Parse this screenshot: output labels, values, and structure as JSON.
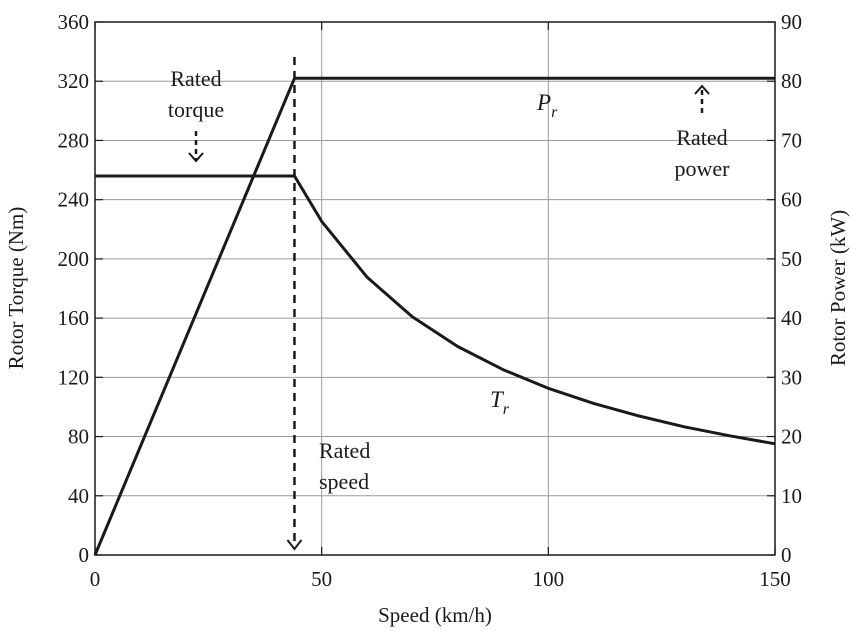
{
  "chart_data": {
    "type": "line",
    "title": "",
    "xlabel": "Speed (km/h)",
    "ylabel_left": "Rotor Torque (Nm)",
    "ylabel_right": "Rotor Power (kW)",
    "xlim": [
      0,
      150
    ],
    "ylim_left": [
      0,
      360
    ],
    "ylim_right": [
      0,
      90
    ],
    "x_ticks": [
      "0",
      "50",
      "100",
      "150"
    ],
    "y_ticks_left": [
      "0",
      "40",
      "80",
      "120",
      "160",
      "200",
      "240",
      "280",
      "320",
      "360"
    ],
    "y_ticks_right": [
      "0",
      "10",
      "20",
      "30",
      "40",
      "50",
      "60",
      "70",
      "80",
      "90"
    ],
    "grid": true,
    "rated_speed": 44,
    "series": [
      {
        "name": "T",
        "subscript": "r",
        "axis": "left",
        "points": [
          [
            0,
            256
          ],
          [
            44,
            256
          ],
          [
            50,
            225.3
          ],
          [
            60,
            187.7
          ],
          [
            70,
            160.9
          ],
          [
            80,
            140.8
          ],
          [
            90,
            125.2
          ],
          [
            100,
            112.6
          ],
          [
            110,
            102.4
          ],
          [
            120,
            93.9
          ],
          [
            130,
            86.6
          ],
          [
            140,
            80.5
          ],
          [
            150,
            75.1
          ]
        ]
      },
      {
        "name": "P",
        "subscript": "r",
        "axis": "right",
        "points": [
          [
            0,
            0
          ],
          [
            44,
            80.5
          ],
          [
            150,
            80.5
          ]
        ]
      }
    ],
    "annotations": {
      "rated_torque": [
        "Rated",
        "torque"
      ],
      "rated_power": [
        "Rated",
        "power"
      ],
      "rated_speed": [
        "Rated",
        "speed"
      ]
    }
  }
}
